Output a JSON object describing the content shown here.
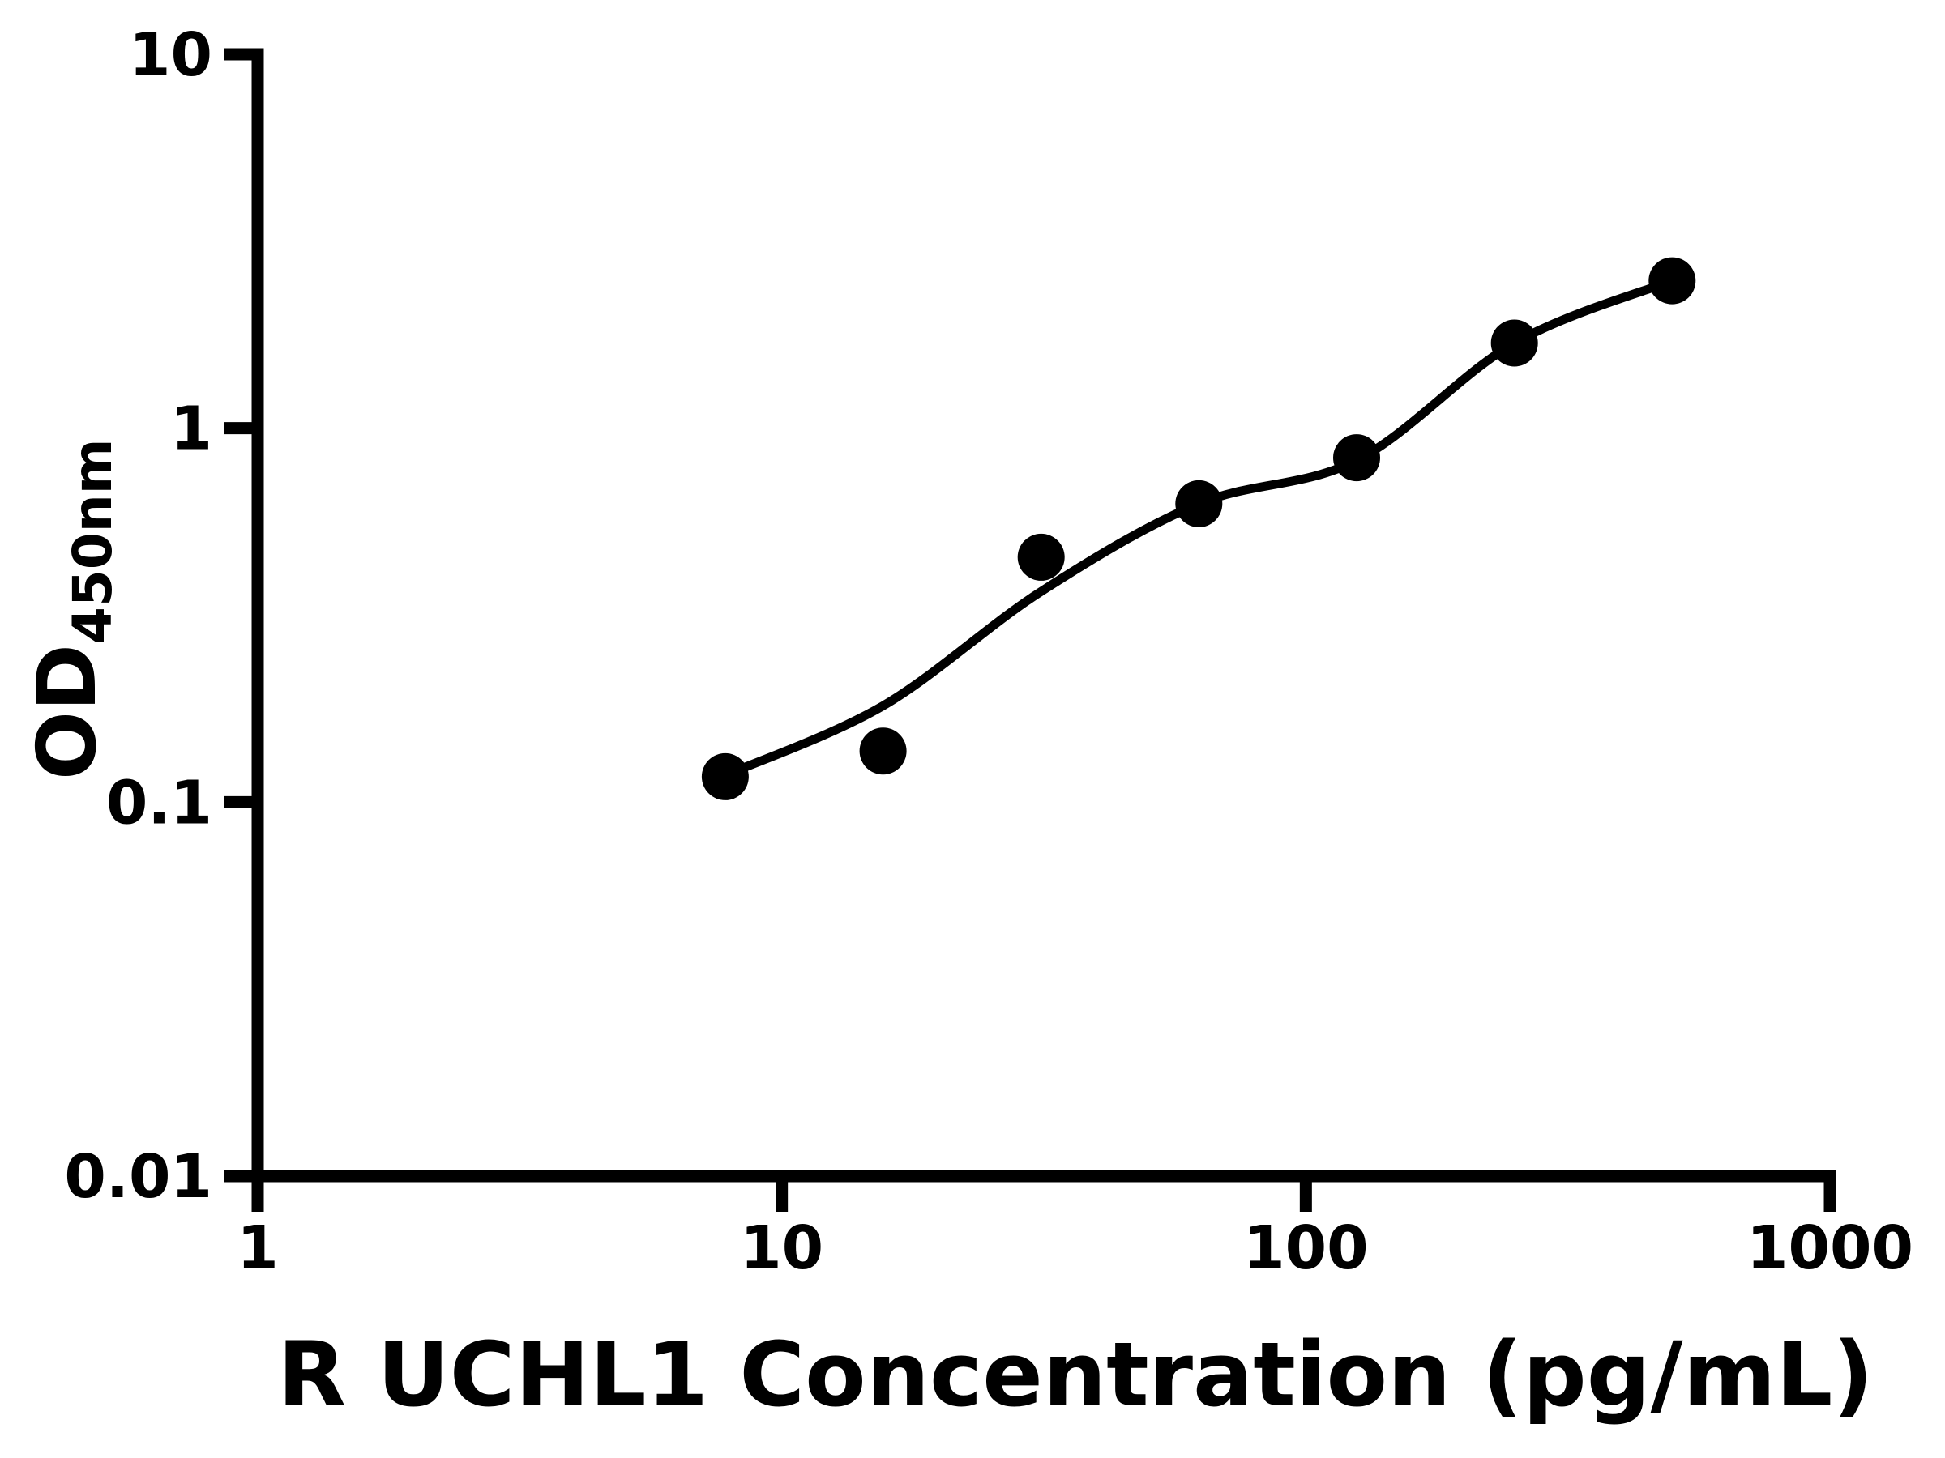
{
  "figure": {
    "background_color": "#ffffff",
    "ink_color": "#000000"
  },
  "chart_data": {
    "type": "scatter",
    "title": "",
    "xlabel": "R UCHL1 Concentration (pg/mL)",
    "ylabel": "OD450nm",
    "ylabel_main": "OD",
    "ylabel_sub": "450nm",
    "x_scale": "log10",
    "y_scale": "log10",
    "xlim": [
      1,
      1000
    ],
    "ylim": [
      0.01,
      10
    ],
    "grid": false,
    "legend_position": "none",
    "x_ticks": [
      {
        "value": 1,
        "label": "1"
      },
      {
        "value": 10,
        "label": "10"
      },
      {
        "value": 100,
        "label": "100"
      },
      {
        "value": 1000,
        "label": "1000"
      }
    ],
    "y_ticks": [
      {
        "value": 10,
        "label": "10"
      },
      {
        "value": 1,
        "label": "1"
      },
      {
        "value": 0.1,
        "label": "0.1"
      },
      {
        "value": 0.01,
        "label": "0.01"
      }
    ],
    "series": [
      {
        "name": "standard-points",
        "marker": "filled-circle",
        "marker_color": "#000000",
        "points": [
          {
            "x": 7.8,
            "y": 0.117
          },
          {
            "x": 15.6,
            "y": 0.137
          },
          {
            "x": 31.25,
            "y": 0.452
          },
          {
            "x": 62.5,
            "y": 0.628
          },
          {
            "x": 125,
            "y": 0.834
          },
          {
            "x": 250,
            "y": 1.69
          },
          {
            "x": 500,
            "y": 2.48
          }
        ]
      }
    ],
    "fit_curve": {
      "name": "fitted-standard-curve",
      "color": "#000000",
      "points": [
        [
          7.8,
          0.118
        ],
        [
          15.6,
          0.181
        ],
        [
          31.25,
          0.366
        ],
        [
          62.5,
          0.628
        ],
        [
          125,
          0.82
        ],
        [
          250,
          1.69
        ],
        [
          500,
          2.48
        ]
      ]
    }
  }
}
